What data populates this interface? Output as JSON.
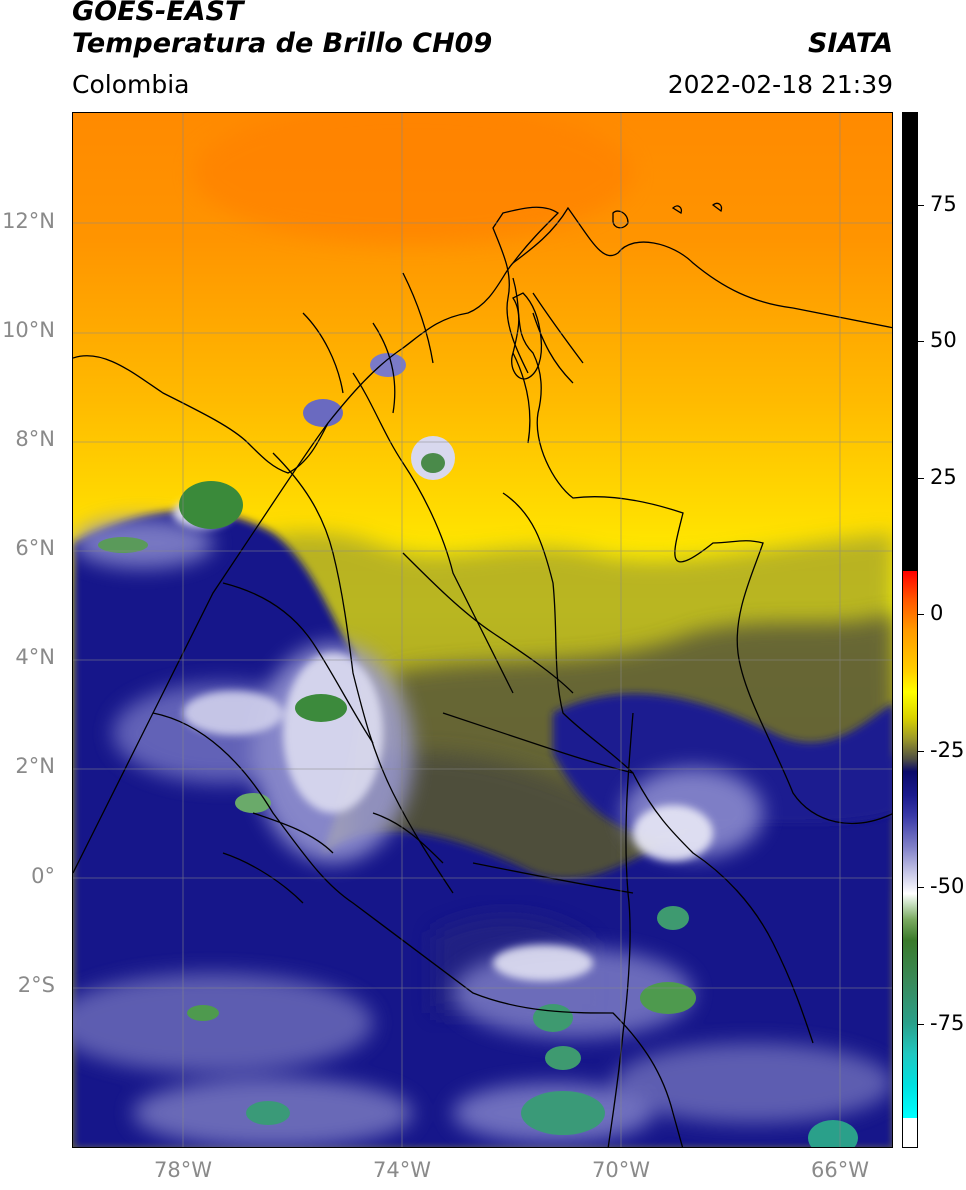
{
  "header": {
    "title_line1": "GOES-EAST",
    "title_line2": "Temperatura de Brillo CH09",
    "region": "Colombia",
    "source": "SIATA",
    "timestamp": "2022-02-18 21:39"
  },
  "map": {
    "lat_labels": [
      "12°N",
      "10°N",
      "8°N",
      "6°N",
      "4°N",
      "2°N",
      "0°",
      "2°S"
    ],
    "lon_labels": [
      "78°W",
      "74°W",
      "70°W",
      "66°W"
    ]
  },
  "colorbar": {
    "labels": [
      "75",
      "50",
      "25",
      "0",
      "-25",
      "-50",
      "-75"
    ],
    "colors": {
      "warm_black": "#000000",
      "red": "#ff0000",
      "orange": "#ff9a00",
      "yellow": "#ffff00",
      "olive": "#9d9a28",
      "navy": "#1a1a8e",
      "white": "#ffffff",
      "green": "#3a7a2a",
      "teal": "#2aa08a",
      "cyan": "#00ffff"
    }
  }
}
